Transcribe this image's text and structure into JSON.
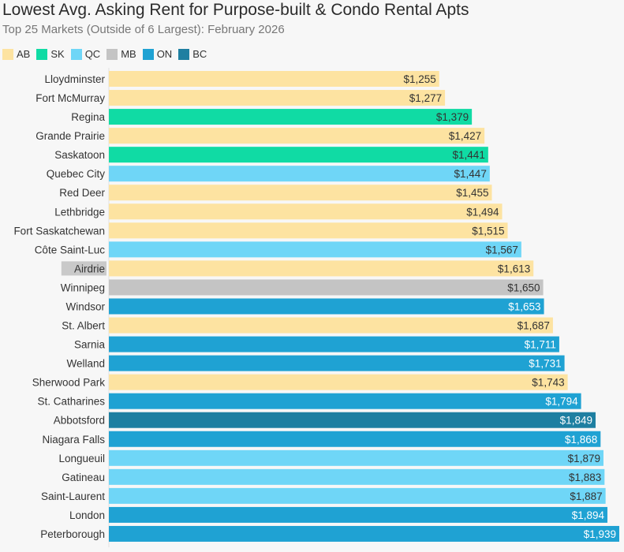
{
  "chart_data": {
    "type": "bar",
    "orientation": "horizontal",
    "title": "Lowest Avg. Asking Rent for Purpose-built & Condo Rental Apts",
    "subtitle": "Top 25 Markets (Outside of 6 Largest): February 2026",
    "legend": [
      {
        "key": "AB",
        "label": "AB",
        "color": "#fde3a1"
      },
      {
        "key": "SK",
        "label": "SK",
        "color": "#10dba4"
      },
      {
        "key": "QC",
        "label": "QC",
        "color": "#6fd6f7"
      },
      {
        "key": "MB",
        "label": "MB",
        "color": "#c4c4c4"
      },
      {
        "key": "ON",
        "label": "ON",
        "color": "#1fa2d3"
      },
      {
        "key": "BC",
        "label": "BC",
        "color": "#1e7fa1"
      }
    ],
    "value_prefix": "$",
    "xlim": [
      0,
      1939
    ],
    "categories": [
      "Lloydminster",
      "Fort McMurray",
      "Regina",
      "Grande Prairie",
      "Saskatoon",
      "Quebec City",
      "Red Deer",
      "Lethbridge",
      "Fort Saskatchewan",
      "Côte Saint-Luc",
      "Airdrie",
      "Winnipeg",
      "Windsor",
      "St. Albert",
      "Sarnia",
      "Welland",
      "Sherwood Park",
      "St. Catharines",
      "Abbotsford",
      "Niagara Falls",
      "Longueuil",
      "Gatineau",
      "Saint-Laurent",
      "London",
      "Peterborough"
    ],
    "values": [
      1255,
      1277,
      1379,
      1427,
      1441,
      1447,
      1455,
      1494,
      1515,
      1567,
      1613,
      1650,
      1653,
      1687,
      1711,
      1731,
      1743,
      1794,
      1849,
      1868,
      1879,
      1883,
      1887,
      1894,
      1939
    ],
    "provinces": [
      "AB",
      "AB",
      "SK",
      "AB",
      "SK",
      "QC",
      "AB",
      "AB",
      "AB",
      "QC",
      "AB",
      "MB",
      "ON",
      "AB",
      "ON",
      "ON",
      "AB",
      "ON",
      "BC",
      "ON",
      "QC",
      "QC",
      "QC",
      "ON",
      "ON"
    ],
    "highlighted_category": "Airdrie"
  }
}
